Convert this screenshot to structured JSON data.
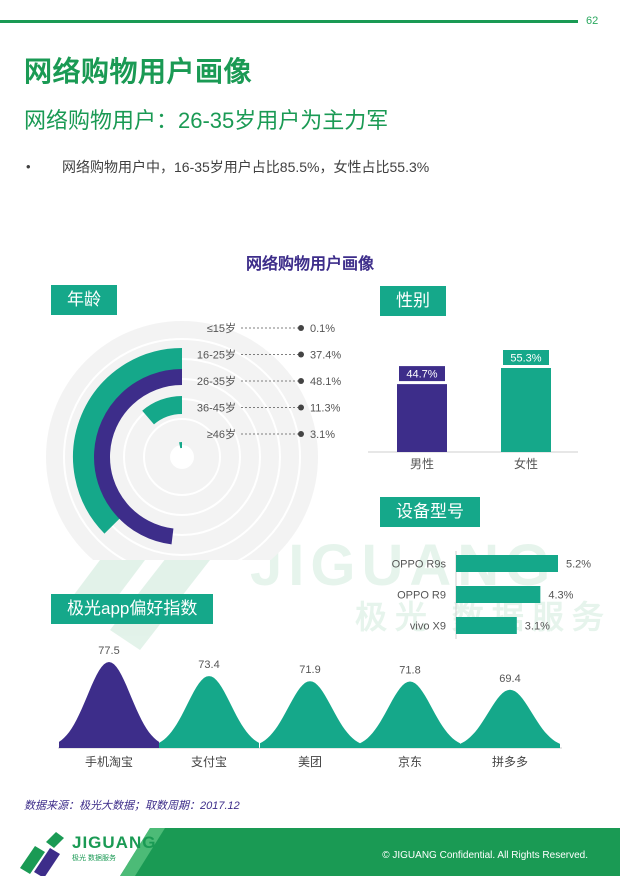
{
  "page_number": "62",
  "title": "网络购物用户画像",
  "subtitle": "网络购物用户：26-35岁用户为主力军",
  "bullet": {
    "mark": "•",
    "text": "网络购物用户中，16-35岁用户占比85.5%，女性占比55.3%"
  },
  "panel_title": "网络购物用户画像",
  "age_section": {
    "tag": "年龄",
    "groups": [
      {
        "label": "≤15岁",
        "value_text": "0.1%",
        "value": 0.1
      },
      {
        "label": "16-25岁",
        "value_text": "37.4%",
        "value": 37.4
      },
      {
        "label": "26-35岁",
        "value_text": "48.1%",
        "value": 48.1
      },
      {
        "label": "36-45岁",
        "value_text": "11.3%",
        "value": 11.3
      },
      {
        "label": "≥46岁",
        "value_text": "3.1%",
        "value": 3.1
      }
    ]
  },
  "gender_section": {
    "tag": "性别",
    "bars": [
      {
        "label": "男性",
        "value_text": "44.7%",
        "value": 44.7,
        "color": "#3d2d8a"
      },
      {
        "label": "女性",
        "value_text": "55.3%",
        "value": 55.3,
        "color": "#15a88a"
      }
    ]
  },
  "device_section": {
    "tag": "设备型号",
    "bars": [
      {
        "label": "OPPO R9s",
        "value_text": "5.2%",
        "value": 5.2
      },
      {
        "label": "OPPO R9",
        "value_text": "4.3%",
        "value": 4.3
      },
      {
        "label": "vivo X9",
        "value_text": "3.1%",
        "value": 3.1
      }
    ]
  },
  "app_section": {
    "tag": "极光app偏好指数",
    "apps": [
      {
        "label": "手机淘宝",
        "value_text": "77.5",
        "value": 77.5,
        "color": "#3d2d8a"
      },
      {
        "label": "支付宝",
        "value_text": "73.4",
        "value": 73.4,
        "color": "#15a88a"
      },
      {
        "label": "美团",
        "value_text": "71.9",
        "value": 71.9,
        "color": "#15a88a"
      },
      {
        "label": "京东",
        "value_text": "71.8",
        "value": 71.8,
        "color": "#15a88a"
      },
      {
        "label": "拼多多",
        "value_text": "69.4",
        "value": 69.4,
        "color": "#15a88a"
      }
    ]
  },
  "watermark": {
    "brand": "JIGUANG",
    "sub": "极光 数据服务"
  },
  "source_text": "数据来源：极光大数据；取数周期：2017.12",
  "footer": {
    "brand": "JIGUANG",
    "brand_sub": "极光 数据服务",
    "copyright": "© JIGUANG Confidential. All Rights Reserved."
  },
  "colors": {
    "green": "#1a9a54",
    "teal": "#15a88a",
    "purple": "#3d2d8a"
  }
}
